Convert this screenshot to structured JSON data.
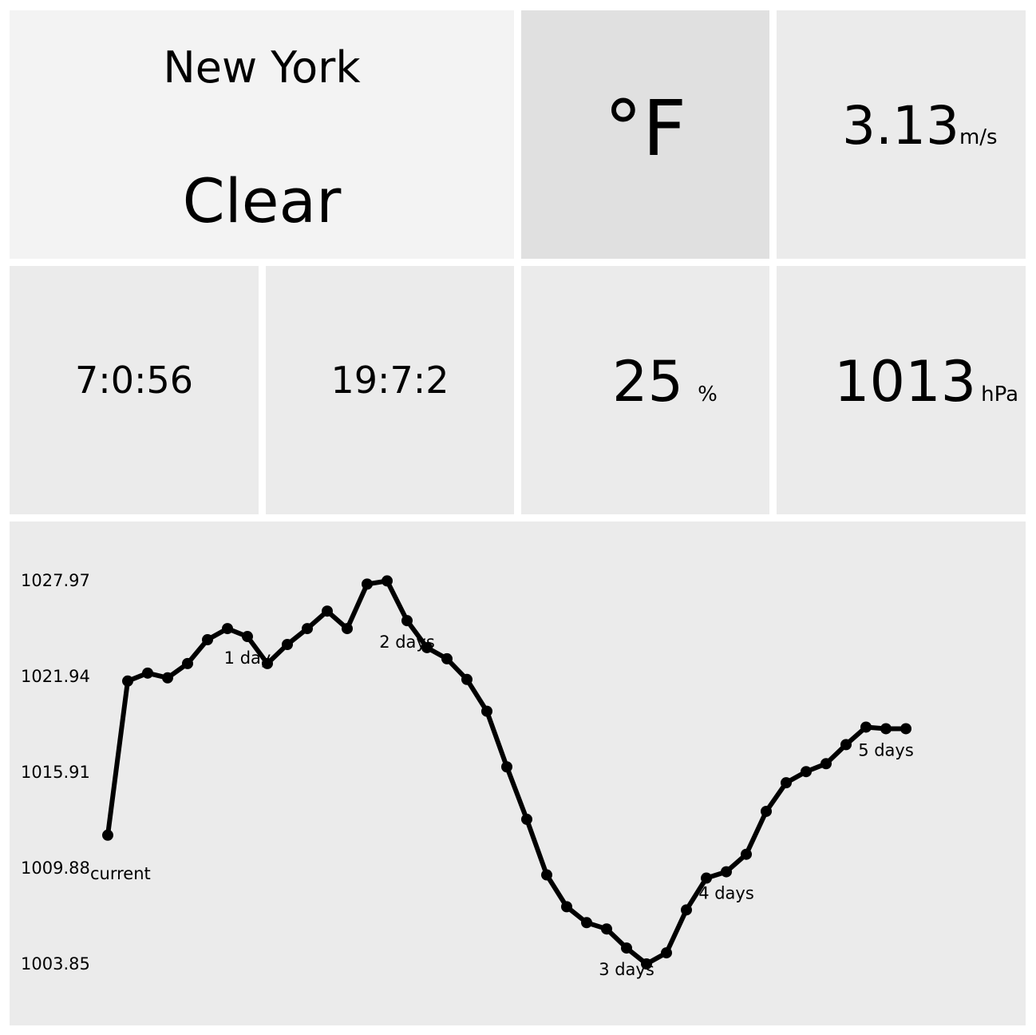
{
  "city": {
    "name": "New York",
    "condition": "Clear"
  },
  "unit_toggle": {
    "label": "°F"
  },
  "wind": {
    "value": "3.13",
    "unit": "m/s"
  },
  "sunrise": {
    "value": "7:0:56"
  },
  "sunset": {
    "value": "19:7:2"
  },
  "humidity": {
    "value": "25",
    "unit": "%"
  },
  "pressure": {
    "value": "1013",
    "unit": "hPa"
  },
  "chart_data": {
    "type": "line",
    "title": "",
    "xlabel": "",
    "ylabel": "",
    "y_ticks": [
      "1027.97",
      "1021.94",
      "1015.91",
      "1009.88",
      "1003.85"
    ],
    "ylim": [
      1003.85,
      1027.97
    ],
    "x_labels": [
      {
        "index": 0,
        "label": "current"
      },
      {
        "index": 7,
        "label": "1 day"
      },
      {
        "index": 15,
        "label": "2 days"
      },
      {
        "index": 26,
        "label": "3 days"
      },
      {
        "index": 31,
        "label": "4 days"
      },
      {
        "index": 39,
        "label": "5 days"
      }
    ],
    "grid": false,
    "series": [
      {
        "values": [
          1012.0,
          1021.7,
          1022.2,
          1021.9,
          1022.8,
          1024.3,
          1025.0,
          1024.5,
          1022.8,
          1024.0,
          1025.0,
          1026.1,
          1025.0,
          1027.8,
          1028.0,
          1025.5,
          1023.8,
          1023.1,
          1021.8,
          1019.8,
          1016.3,
          1013.0,
          1009.5,
          1007.5,
          1006.5,
          1006.1,
          1004.9,
          1003.9,
          1004.6,
          1007.3,
          1009.3,
          1009.7,
          1010.8,
          1013.5,
          1015.3,
          1016.0,
          1016.5,
          1017.7,
          1018.8,
          1018.7,
          1018.7
        ]
      }
    ]
  }
}
